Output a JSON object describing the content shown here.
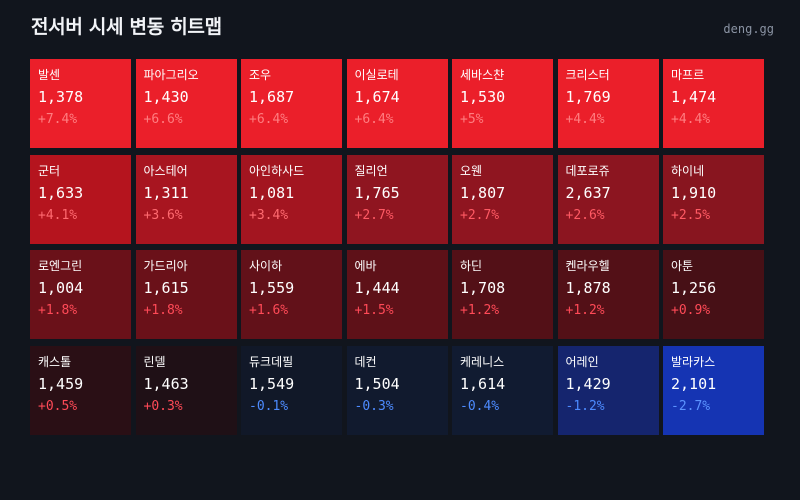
{
  "title": "전서버 시세 변동 히트맵",
  "site": "deng.gg",
  "colors": {
    "background": "#11151d",
    "title": "#f2f4f8",
    "site": "#8a93a3"
  },
  "cells": [
    {
      "name": "발센",
      "price": "1,378",
      "change": "+7.4%",
      "bg": "#eb1f2a",
      "chg_color": "#ff7d80"
    },
    {
      "name": "파아그리오",
      "price": "1,430",
      "change": "+6.6%",
      "bg": "#eb1f2a",
      "chg_color": "#ff7d80"
    },
    {
      "name": "조우",
      "price": "1,687",
      "change": "+6.4%",
      "bg": "#eb1f2a",
      "chg_color": "#ff7d80"
    },
    {
      "name": "이실로테",
      "price": "1,674",
      "change": "+6.4%",
      "bg": "#eb1f2a",
      "chg_color": "#ff7d80"
    },
    {
      "name": "세바스챤",
      "price": "1,530",
      "change": "+5%",
      "bg": "#eb1f2a",
      "chg_color": "#ff7d80"
    },
    {
      "name": "크리스터",
      "price": "1,769",
      "change": "+4.4%",
      "bg": "#eb1f2a",
      "chg_color": "#ff7d80"
    },
    {
      "name": "마프르",
      "price": "1,474",
      "change": "+4.4%",
      "bg": "#eb1f2a",
      "chg_color": "#ff7d80"
    },
    {
      "name": "군터",
      "price": "1,633",
      "change": "+4.1%",
      "bg": "#b5141e",
      "chg_color": "#ff6a70"
    },
    {
      "name": "아스테어",
      "price": "1,311",
      "change": "+3.6%",
      "bg": "#a81520",
      "chg_color": "#ff6a70"
    },
    {
      "name": "아인하사드",
      "price": "1,081",
      "change": "+3.4%",
      "bg": "#a31520",
      "chg_color": "#ff6a70"
    },
    {
      "name": "질리언",
      "price": "1,765",
      "change": "+2.7%",
      "bg": "#8f1520",
      "chg_color": "#ff5a64"
    },
    {
      "name": "오웬",
      "price": "1,807",
      "change": "+2.7%",
      "bg": "#8f1520",
      "chg_color": "#ff5a64"
    },
    {
      "name": "데포로쥬",
      "price": "2,637",
      "change": "+2.6%",
      "bg": "#8c1520",
      "chg_color": "#ff5a64"
    },
    {
      "name": "하이네",
      "price": "1,910",
      "change": "+2.5%",
      "bg": "#88151f",
      "chg_color": "#ff5a64"
    },
    {
      "name": "로엔그린",
      "price": "1,004",
      "change": "+1.8%",
      "bg": "#6a1119",
      "chg_color": "#ff4a57"
    },
    {
      "name": "가드리아",
      "price": "1,615",
      "change": "+1.8%",
      "bg": "#6a1119",
      "chg_color": "#ff4a57"
    },
    {
      "name": "사이하",
      "price": "1,559",
      "change": "+1.6%",
      "bg": "#621119",
      "chg_color": "#ff4a57"
    },
    {
      "name": "에바",
      "price": "1,444",
      "change": "+1.5%",
      "bg": "#5e1118",
      "chg_color": "#ff4a57"
    },
    {
      "name": "하딘",
      "price": "1,708",
      "change": "+1.2%",
      "bg": "#531017",
      "chg_color": "#ff4a57"
    },
    {
      "name": "켄라우헬",
      "price": "1,878",
      "change": "+1.2%",
      "bg": "#531017",
      "chg_color": "#ff4a57"
    },
    {
      "name": "아툰",
      "price": "1,256",
      "change": "+0.9%",
      "bg": "#471016",
      "chg_color": "#ff4a57"
    },
    {
      "name": "캐스톨",
      "price": "1,459",
      "change": "+0.5%",
      "bg": "#2a0f15",
      "chg_color": "#ff4a57"
    },
    {
      "name": "린델",
      "price": "1,463",
      "change": "+0.3%",
      "bg": "#1f1016",
      "chg_color": "#ff4a57"
    },
    {
      "name": "듀크데필",
      "price": "1,549",
      "change": "-0.1%",
      "bg": "#111828",
      "chg_color": "#4d8bff"
    },
    {
      "name": "데컨",
      "price": "1,504",
      "change": "-0.3%",
      "bg": "#111a2e",
      "chg_color": "#4d8bff"
    },
    {
      "name": "케레니스",
      "price": "1,614",
      "change": "-0.4%",
      "bg": "#111b31",
      "chg_color": "#4d8bff"
    },
    {
      "name": "어레인",
      "price": "1,429",
      "change": "-1.2%",
      "bg": "#15256e",
      "chg_color": "#4d8bff"
    },
    {
      "name": "발라카스",
      "price": "2,101",
      "change": "-2.7%",
      "bg": "#1534b3",
      "chg_color": "#5b93ff"
    }
  ]
}
